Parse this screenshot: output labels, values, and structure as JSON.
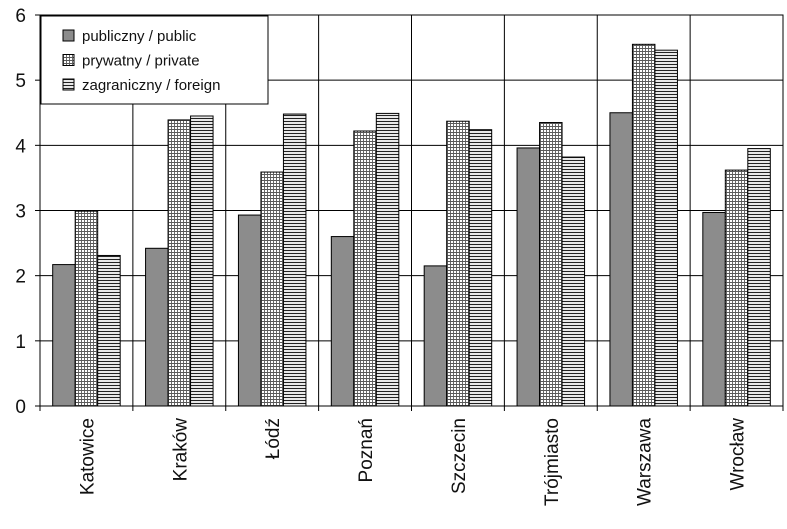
{
  "chart_data": {
    "type": "bar",
    "categories": [
      "Katowice",
      "Kraków",
      "Łódź",
      "Poznań",
      "Szczecin",
      "Trójmiasto",
      "Warszawa",
      "Wrocław"
    ],
    "series": [
      {
        "name": "publiczny / public",
        "pattern": "solid",
        "values": [
          2.17,
          2.42,
          2.93,
          2.6,
          2.15,
          3.96,
          4.5,
          2.97
        ]
      },
      {
        "name": "prywatny / private",
        "pattern": "grid",
        "values": [
          2.99,
          4.39,
          3.59,
          4.22,
          4.37,
          4.35,
          5.55,
          3.62
        ]
      },
      {
        "name": "zagraniczny / foreign",
        "pattern": "horizontal",
        "values": [
          2.31,
          4.45,
          4.48,
          4.49,
          4.24,
          3.82,
          5.46,
          3.95
        ]
      }
    ],
    "ylim": [
      0,
      6
    ],
    "yticks": [
      0,
      1,
      2,
      3,
      4,
      5,
      6
    ],
    "grid": true,
    "legend": "top-left",
    "colors": {
      "solid": "#8c8c8c",
      "stroke": "#000000",
      "grid": "#000000"
    }
  }
}
